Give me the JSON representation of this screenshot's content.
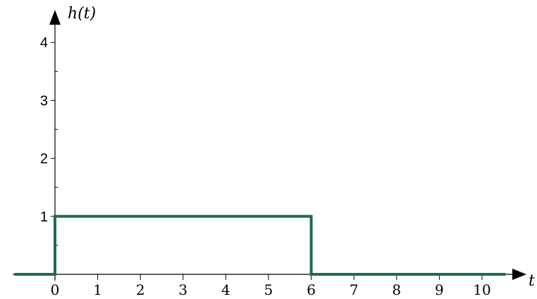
{
  "chart_data": {
    "type": "line",
    "xlabel": "t",
    "ylabel": "h(t)",
    "xlim": [
      -1,
      11
    ],
    "ylim": [
      0,
      4.3
    ],
    "x_ticks": [
      "0",
      "1",
      "2",
      "3",
      "4",
      "5",
      "6",
      "7",
      "8",
      "9",
      "10"
    ],
    "y_ticks": [
      "1",
      "2",
      "3",
      "4"
    ],
    "y_minor_step": 0.5,
    "grid": false,
    "series": [
      {
        "color": "#1f6b4f",
        "points": [
          [
            -0.95,
            0
          ],
          [
            0,
            0
          ],
          [
            0,
            1
          ],
          [
            6,
            1
          ],
          [
            6,
            0
          ],
          [
            10.55,
            0
          ]
        ]
      }
    ]
  }
}
